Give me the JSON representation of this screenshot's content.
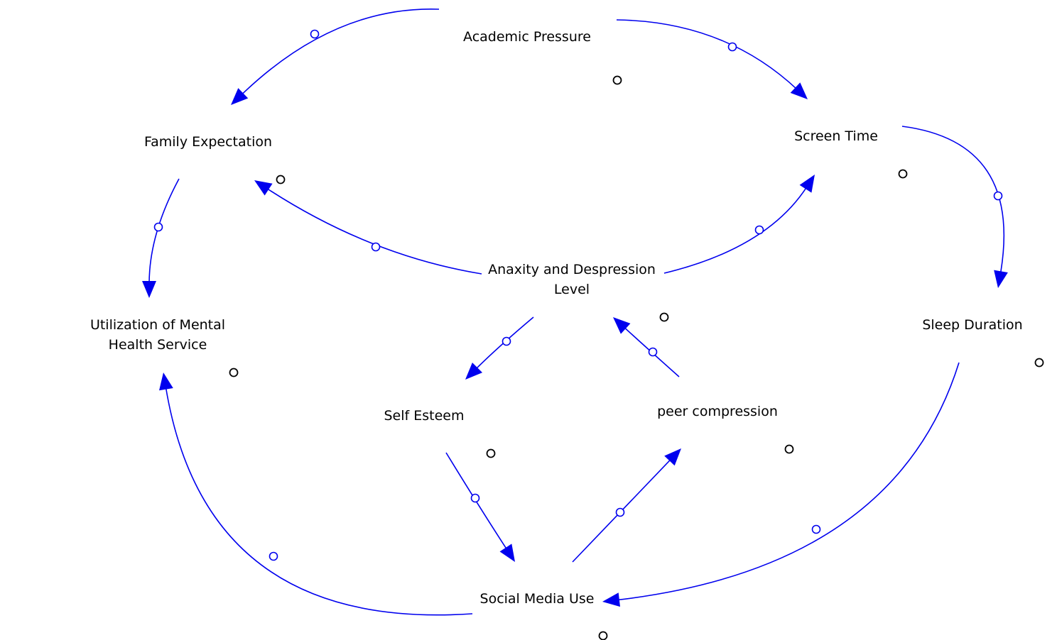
{
  "diagram": {
    "colors": {
      "link": "#0000ee",
      "label": "#000000",
      "marker": "#000000",
      "background": "#ffffff"
    },
    "nodes": [
      {
        "id": "academic",
        "lines": [
          "Academic Pressure"
        ]
      },
      {
        "id": "family",
        "lines": [
          "Family Expectation"
        ]
      },
      {
        "id": "screen",
        "lines": [
          "Screen Time"
        ]
      },
      {
        "id": "anxiety",
        "lines": [
          "Anaxity and Despression",
          "Level"
        ]
      },
      {
        "id": "utilization",
        "lines": [
          "Utilization of Mental",
          "Health Service"
        ]
      },
      {
        "id": "sleep",
        "lines": [
          "Sleep Duration"
        ]
      },
      {
        "id": "selfesteem",
        "lines": [
          "Self Esteem"
        ]
      },
      {
        "id": "peer",
        "lines": [
          "peer compression"
        ]
      },
      {
        "id": "social",
        "lines": [
          "Social Media Use"
        ]
      }
    ],
    "links": [
      {
        "from": "academic",
        "to": "family"
      },
      {
        "from": "academic",
        "to": "screen"
      },
      {
        "from": "family",
        "to": "utilization"
      },
      {
        "from": "anxiety",
        "to": "family"
      },
      {
        "from": "anxiety",
        "to": "screen"
      },
      {
        "from": "screen",
        "to": "sleep"
      },
      {
        "from": "anxiety",
        "to": "selfesteem"
      },
      {
        "from": "peer",
        "to": "anxiety"
      },
      {
        "from": "selfesteem",
        "to": "social"
      },
      {
        "from": "social",
        "to": "peer"
      },
      {
        "from": "sleep",
        "to": "social"
      },
      {
        "from": "social",
        "to": "utilization"
      }
    ]
  }
}
